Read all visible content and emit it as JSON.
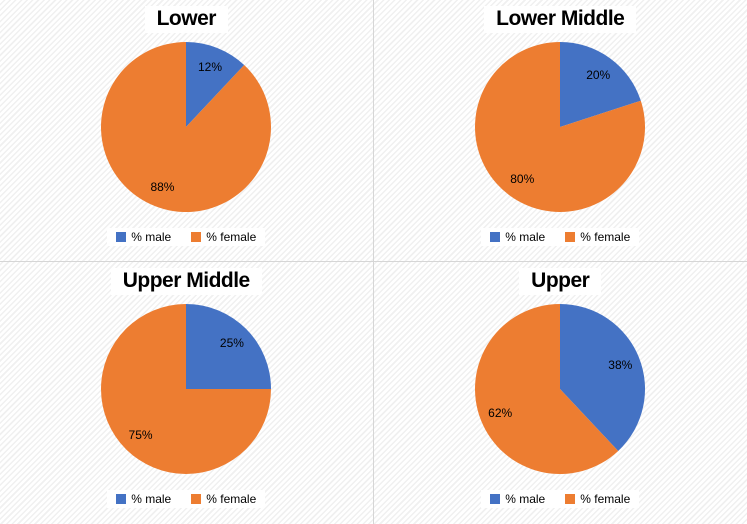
{
  "legend": {
    "male_label": "% male",
    "female_label": "% female"
  },
  "colors": {
    "male": "#4472C4",
    "female": "#ED7D31",
    "divider": "#d6d6d6",
    "stripe": "#f0f0f0",
    "label_text": "#000000"
  },
  "chart_data": [
    {
      "type": "pie",
      "title": "Lower",
      "categories": [
        "% male",
        "% female"
      ],
      "values": [
        12,
        88
      ],
      "value_labels": [
        "12%",
        "88%"
      ],
      "colors": [
        "#4472C4",
        "#ED7D31"
      ],
      "legend_position": "bottom",
      "start_angle_deg": 0,
      "direction": "clockwise"
    },
    {
      "type": "pie",
      "title": "Lower Middle",
      "categories": [
        "% male",
        "% female"
      ],
      "values": [
        20,
        80
      ],
      "value_labels": [
        "20%",
        "80%"
      ],
      "colors": [
        "#4472C4",
        "#ED7D31"
      ],
      "legend_position": "bottom",
      "start_angle_deg": 0,
      "direction": "clockwise"
    },
    {
      "type": "pie",
      "title": "Upper Middle",
      "categories": [
        "% male",
        "% female"
      ],
      "values": [
        25,
        75
      ],
      "value_labels": [
        "25%",
        "75%"
      ],
      "colors": [
        "#4472C4",
        "#ED7D31"
      ],
      "legend_position": "bottom",
      "start_angle_deg": 0,
      "direction": "clockwise"
    },
    {
      "type": "pie",
      "title": "Upper",
      "categories": [
        "% male",
        "% female"
      ],
      "values": [
        38,
        62
      ],
      "value_labels": [
        "38%",
        "62%"
      ],
      "colors": [
        "#4472C4",
        "#ED7D31"
      ],
      "legend_position": "bottom",
      "start_angle_deg": 0,
      "direction": "clockwise"
    }
  ]
}
